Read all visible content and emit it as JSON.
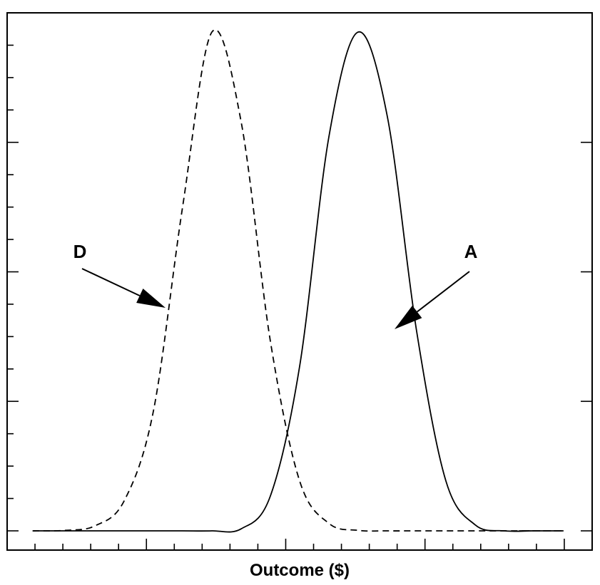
{
  "chart_data": {
    "type": "line",
    "title": "",
    "xlabel": "Outcome ($)",
    "ylabel": "",
    "xlim": [
      0,
      100
    ],
    "ylim": [
      0,
      1.02
    ],
    "grid": false,
    "x": [
      5,
      10,
      15,
      20,
      25,
      30,
      35,
      40,
      45,
      50,
      55,
      60,
      65,
      70,
      75,
      80,
      85,
      90,
      95
    ],
    "series": [
      {
        "name": "D",
        "style": "dashed",
        "values": [
          0.0,
          0.001,
          0.01,
          0.06,
          0.24,
          0.65,
          1.0,
          0.82,
          0.38,
          0.1,
          0.015,
          0.001,
          0.0,
          0.0,
          0.0,
          0.0,
          0.0,
          0.0,
          0.0
        ]
      },
      {
        "name": "A",
        "style": "solid",
        "values": [
          0.0,
          0.0,
          0.0,
          0.0,
          0.0,
          0.0,
          0.0,
          0.004,
          0.07,
          0.33,
          0.79,
          1.0,
          0.83,
          0.4,
          0.1,
          0.012,
          0.0,
          0.0,
          0.0
        ]
      }
    ],
    "annotations": [
      {
        "text": "D",
        "points_to_series": "D"
      },
      {
        "text": "A",
        "points_to_series": "A"
      }
    ],
    "color": "#000000"
  }
}
